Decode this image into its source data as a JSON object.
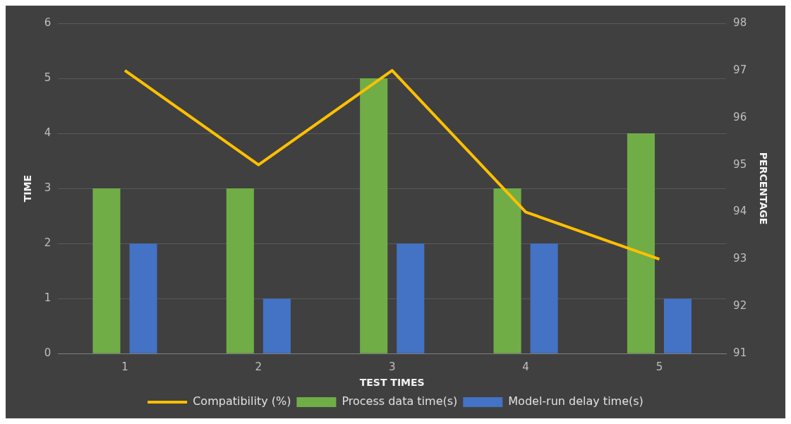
{
  "chart_data": {
    "type": "bar",
    "xlabel": "TEST TIMES",
    "ylabel": "TIME",
    "y2label": "PERCENTAGE",
    "categories": [
      "1",
      "2",
      "3",
      "4",
      "5"
    ],
    "series": [
      {
        "name": "Process data time(s)",
        "color": "#70ad47",
        "values": [
          3,
          3,
          5,
          3,
          4
        ]
      },
      {
        "name": "Model-run delay time(s)",
        "color": "#4472c4",
        "values": [
          2,
          1,
          2,
          2,
          1
        ]
      },
      {
        "name": "Compatibility (%)",
        "type": "line",
        "axis": "y2",
        "color": "#ffc000",
        "values": [
          97,
          95,
          97,
          94,
          93
        ]
      }
    ],
    "ylim": [
      0,
      6
    ],
    "yticks": [
      0,
      1,
      2,
      3,
      4,
      5,
      6
    ],
    "y2lim": [
      91,
      98
    ],
    "y2ticks": [
      91,
      92,
      93,
      94,
      95,
      96,
      97,
      98
    ],
    "grid": "y",
    "legend": "bottom"
  }
}
